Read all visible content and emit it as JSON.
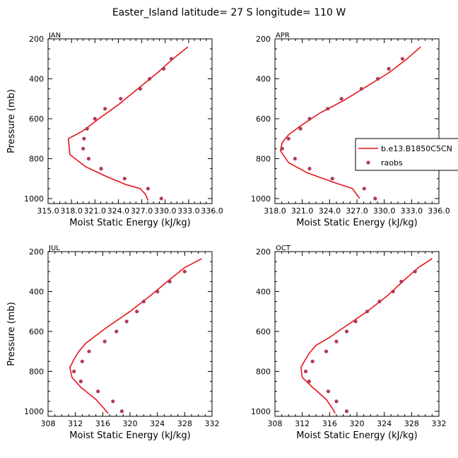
{
  "figure": {
    "title": "Easter_Island   latitude= 27 S  longitude= 110 W"
  },
  "legend": {
    "model_label": "b.e13.B1850C5CN",
    "obs_label": "raobs"
  },
  "colors": {
    "model": "#e8131b",
    "obs": "#b03a5b"
  },
  "chart_data": [
    {
      "type": "line",
      "panel": "JAN",
      "xlabel": "Moist Static Energy (kJ/kg)",
      "ylabel": "Pressure (mb)",
      "xlim": [
        315.0,
        336.0
      ],
      "ylim": [
        1025,
        200
      ],
      "y_inverted": true,
      "xticks": [
        315.0,
        318.0,
        321.0,
        324.0,
        327.0,
        330.0,
        333.0,
        336.0
      ],
      "xtick_labels": [
        "315.0",
        "318.0",
        "321.0",
        "324.0",
        "327.0",
        "330.0",
        "333.0",
        "336.0"
      ],
      "yticks": [
        200,
        400,
        600,
        800,
        1000
      ],
      "series": [
        {
          "name": "b.e13.B1850C5CN",
          "style": "line",
          "points": [
            [
              332.9,
              240
            ],
            [
              331.0,
              300
            ],
            [
              329.0,
              370
            ],
            [
              326.5,
              450
            ],
            [
              324.0,
              530
            ],
            [
              321.5,
              600
            ],
            [
              319.5,
              660
            ],
            [
              317.6,
              700
            ],
            [
              317.8,
              780
            ],
            [
              319.8,
              840
            ],
            [
              322.5,
              890
            ],
            [
              325.0,
              930
            ],
            [
              326.8,
              950
            ],
            [
              327.5,
              980
            ],
            [
              327.8,
              1010
            ]
          ]
        },
        {
          "name": "raobs",
          "style": "markers",
          "points": [
            [
              330.8,
              300
            ],
            [
              329.8,
              350
            ],
            [
              328.0,
              400
            ],
            [
              326.8,
              450
            ],
            [
              324.3,
              500
            ],
            [
              322.3,
              550
            ],
            [
              321.0,
              600
            ],
            [
              320.0,
              650
            ],
            [
              319.6,
              700
            ],
            [
              319.5,
              750
            ],
            [
              320.2,
              800
            ],
            [
              321.8,
              850
            ],
            [
              324.8,
              900
            ],
            [
              327.8,
              950
            ],
            [
              329.5,
              1000
            ]
          ]
        }
      ]
    },
    {
      "type": "line",
      "panel": "APR",
      "xlabel": "Moist Static Energy (kJ/kg)",
      "ylabel": "",
      "xlim": [
        318.0,
        336.0
      ],
      "ylim": [
        1025,
        200
      ],
      "y_inverted": true,
      "xticks": [
        318.0,
        321.0,
        324.0,
        327.0,
        330.0,
        333.0,
        336.0
      ],
      "xtick_labels": [
        "318.0",
        "321.0",
        "324.0",
        "327.0",
        "330.0",
        "333.0",
        "336.0"
      ],
      "yticks": [
        200,
        400,
        600,
        800,
        1000
      ],
      "series": [
        {
          "name": "b.e13.B1850C5CN",
          "style": "line",
          "points": [
            [
              334.0,
              240
            ],
            [
              332.5,
              300
            ],
            [
              330.5,
              370
            ],
            [
              328.0,
              440
            ],
            [
              325.5,
              510
            ],
            [
              323.0,
              570
            ],
            [
              321.0,
              630
            ],
            [
              319.5,
              680
            ],
            [
              318.8,
              720
            ],
            [
              318.6,
              760
            ],
            [
              319.5,
              820
            ],
            [
              321.5,
              870
            ],
            [
              324.5,
              920
            ],
            [
              326.5,
              950
            ],
            [
              327.3,
              1000
            ]
          ]
        },
        {
          "name": "raobs",
          "style": "markers",
          "points": [
            [
              332.0,
              300
            ],
            [
              330.5,
              350
            ],
            [
              329.3,
              400
            ],
            [
              327.5,
              450
            ],
            [
              325.3,
              500
            ],
            [
              323.8,
              550
            ],
            [
              321.8,
              600
            ],
            [
              320.8,
              650
            ],
            [
              319.5,
              700
            ],
            [
              318.8,
              750
            ],
            [
              320.2,
              800
            ],
            [
              321.8,
              850
            ],
            [
              324.3,
              900
            ],
            [
              327.8,
              950
            ],
            [
              329.0,
              1000
            ]
          ]
        }
      ]
    },
    {
      "type": "line",
      "panel": "JUL",
      "xlabel": "Moist Static Energy (kJ/kg)",
      "ylabel": "Pressure (mb)",
      "xlim": [
        308,
        332
      ],
      "ylim": [
        1025,
        200
      ],
      "y_inverted": true,
      "xticks": [
        308,
        312,
        316,
        320,
        324,
        328,
        332
      ],
      "xtick_labels": [
        "308",
        "312",
        "316",
        "320",
        "324",
        "328",
        "332"
      ],
      "yticks": [
        200,
        400,
        600,
        800,
        1000
      ],
      "series": [
        {
          "name": "b.e13.B1850C5CN",
          "style": "line",
          "points": [
            [
              330.5,
              235
            ],
            [
              328.0,
              280
            ],
            [
              325.8,
              340
            ],
            [
              323.0,
              420
            ],
            [
              320.0,
              500
            ],
            [
              317.0,
              570
            ],
            [
              315.0,
              620
            ],
            [
              313.5,
              660
            ],
            [
              312.5,
              700
            ],
            [
              311.8,
              740
            ],
            [
              311.2,
              780
            ],
            [
              311.5,
              830
            ],
            [
              312.8,
              880
            ],
            [
              315.0,
              940
            ],
            [
              316.3,
              990
            ],
            [
              316.8,
              1010
            ]
          ]
        },
        {
          "name": "raobs",
          "style": "markers",
          "points": [
            [
              328.0,
              300
            ],
            [
              325.8,
              350
            ],
            [
              324.0,
              400
            ],
            [
              322.0,
              450
            ],
            [
              321.0,
              500
            ],
            [
              319.5,
              550
            ],
            [
              318.0,
              600
            ],
            [
              316.3,
              650
            ],
            [
              314.0,
              700
            ],
            [
              313.0,
              750
            ],
            [
              311.8,
              800
            ],
            [
              312.8,
              850
            ],
            [
              315.3,
              900
            ],
            [
              317.5,
              950
            ],
            [
              318.8,
              1000
            ]
          ]
        }
      ]
    },
    {
      "type": "line",
      "panel": "OCT",
      "xlabel": "Moist Static Energy (kJ/kg)",
      "ylabel": "",
      "xlim": [
        308,
        332
      ],
      "ylim": [
        1025,
        200
      ],
      "y_inverted": true,
      "xticks": [
        308,
        312,
        316,
        320,
        324,
        328,
        332
      ],
      "xtick_labels": [
        "308",
        "312",
        "316",
        "320",
        "324",
        "328",
        "332"
      ],
      "yticks": [
        200,
        400,
        600,
        800,
        1000
      ],
      "series": [
        {
          "name": "b.e13.B1850C5CN",
          "style": "line",
          "points": [
            [
              331.0,
              235
            ],
            [
              329.0,
              280
            ],
            [
              327.0,
              340
            ],
            [
              324.5,
              420
            ],
            [
              321.5,
              500
            ],
            [
              318.5,
              570
            ],
            [
              316.0,
              630
            ],
            [
              314.0,
              670
            ],
            [
              313.0,
              710
            ],
            [
              312.3,
              750
            ],
            [
              311.8,
              780
            ],
            [
              312.0,
              830
            ],
            [
              313.5,
              880
            ],
            [
              315.5,
              940
            ],
            [
              316.5,
              990
            ],
            [
              316.8,
              1010
            ]
          ]
        },
        {
          "name": "raobs",
          "style": "markers",
          "points": [
            [
              328.5,
              300
            ],
            [
              326.5,
              350
            ],
            [
              325.3,
              400
            ],
            [
              323.3,
              450
            ],
            [
              321.5,
              500
            ],
            [
              319.8,
              550
            ],
            [
              318.5,
              600
            ],
            [
              317.0,
              650
            ],
            [
              315.5,
              700
            ],
            [
              313.5,
              750
            ],
            [
              312.5,
              800
            ],
            [
              313.0,
              850
            ],
            [
              315.8,
              900
            ],
            [
              317.0,
              950
            ],
            [
              318.5,
              1000
            ]
          ]
        }
      ]
    }
  ]
}
